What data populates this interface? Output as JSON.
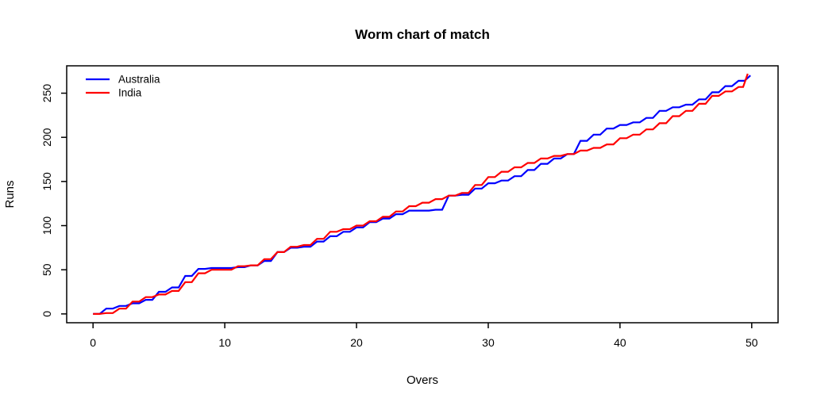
{
  "page": {
    "background": "#ffffff"
  },
  "chart_data": {
    "type": "line",
    "title": "Worm chart of match",
    "xlabel": "Overs",
    "ylabel": "Runs",
    "xlim": [
      -2,
      52
    ],
    "ylim": [
      -10,
      281
    ],
    "x_ticks": [
      0,
      10,
      20,
      30,
      40,
      50
    ],
    "y_ticks": [
      0,
      50,
      100,
      150,
      200,
      250
    ],
    "grid": false,
    "legend_position": "top-left",
    "axis_color": "#000000",
    "series": [
      {
        "name": "Australia",
        "color": "#0000ff",
        "x": [
          0,
          1,
          2,
          3,
          4,
          5,
          6,
          7,
          8,
          9,
          10,
          11,
          12,
          13,
          14,
          15,
          16,
          17,
          18,
          19,
          20,
          21,
          22,
          23,
          24,
          25,
          26,
          27,
          28,
          29,
          30,
          31,
          32,
          33,
          34,
          35,
          36,
          37,
          38,
          39,
          40,
          41,
          42,
          43,
          44,
          45,
          46,
          47,
          48,
          49,
          49.9
        ],
        "y": [
          0,
          6,
          9,
          12,
          16,
          25,
          30,
          43,
          51,
          52,
          52,
          53,
          55,
          60,
          70,
          75,
          76,
          82,
          88,
          93,
          98,
          104,
          108,
          113,
          117,
          117,
          118,
          134,
          135,
          142,
          148,
          151,
          156,
          163,
          170,
          176,
          181,
          196,
          203,
          210,
          214,
          217,
          222,
          230,
          234,
          237,
          243,
          251,
          258,
          264,
          270
        ]
      },
      {
        "name": "India",
        "color": "#ff0000",
        "x": [
          0,
          1,
          2,
          3,
          4,
          5,
          6,
          7,
          8,
          9,
          10,
          11,
          12,
          13,
          14,
          15,
          16,
          17,
          18,
          19,
          20,
          21,
          22,
          23,
          24,
          25,
          26,
          27,
          28,
          29,
          30,
          31,
          32,
          33,
          34,
          35,
          36,
          37,
          38,
          39,
          40,
          41,
          42,
          43,
          44,
          45,
          46,
          47,
          48,
          49,
          49.7
        ],
        "y": [
          0,
          1,
          6,
          14,
          19,
          22,
          26,
          36,
          46,
          50,
          50,
          54,
          55,
          62,
          70,
          76,
          78,
          85,
          93,
          96,
          100,
          105,
          110,
          116,
          122,
          126,
          130,
          134,
          137,
          146,
          155,
          161,
          166,
          171,
          176,
          179,
          181,
          185,
          188,
          192,
          199,
          203,
          209,
          216,
          224,
          230,
          238,
          247,
          252,
          257,
          272
        ]
      }
    ]
  }
}
